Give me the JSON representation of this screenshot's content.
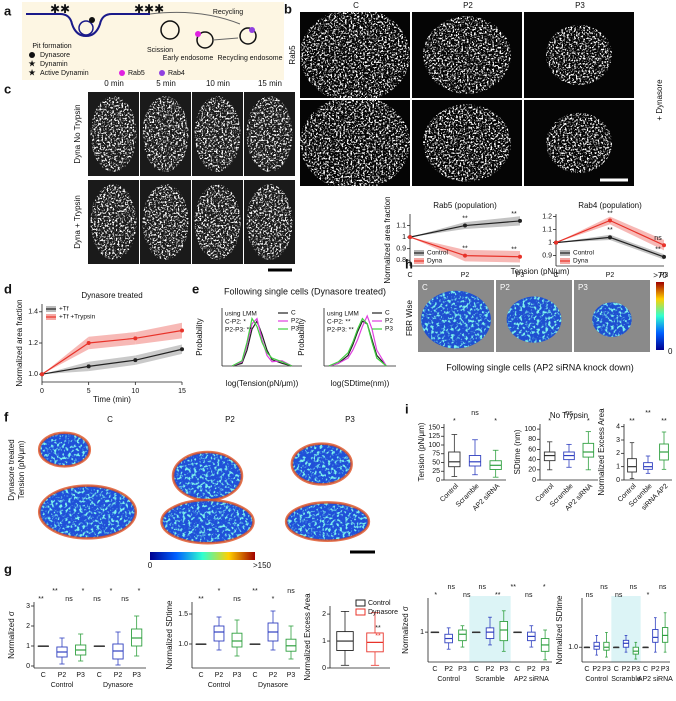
{
  "figure": {
    "panel_letters": [
      "a",
      "b",
      "c",
      "d",
      "e",
      "f",
      "g",
      "h",
      "i"
    ],
    "a": {
      "steps": [
        "Pit formation",
        "Scission",
        "Recycling",
        "Early endosome",
        "Recycling endosome"
      ],
      "legend": [
        "Dynasore",
        "Dynamin",
        "Active Dynamin",
        "Rab5",
        "Rab4"
      ]
    },
    "b": {
      "columns": [
        "C",
        "P2",
        "P3"
      ],
      "rows": [
        "Rab5",
        "Rab4"
      ],
      "side_label": "+ Dynasore"
    },
    "c": {
      "columns": [
        "0 min",
        "5 min",
        "10 min",
        "15 min"
      ],
      "rows": [
        "Dyna No Trypsin",
        "Dyna + Trypsin"
      ]
    },
    "e": {
      "title": "Following single cells (Dynasore treated)"
    },
    "f": {
      "side_label": [
        "Dynasore treated",
        "Tension (pN/μm)"
      ],
      "columns": [
        "C",
        "P2",
        "P3"
      ],
      "colorbar": [
        "0",
        ">150"
      ]
    },
    "h": {
      "title": "Tension (pN/μm)",
      "side_label": "FBR Wise",
      "columns": [
        "C",
        "P2",
        "P3"
      ],
      "colorbar": [
        ">70",
        "0"
      ],
      "caption": "Following single cells (AP2 siRNA knock down)"
    }
  },
  "chart_data": [
    {
      "type": "line",
      "title": "Rab5 (population)",
      "ylabel": "Normalized area fraction",
      "categories": [
        "C",
        "P2",
        "P3"
      ],
      "series": [
        {
          "name": "Control",
          "color": "#222222",
          "band_color": "#b4b4b4",
          "values": [
            1,
            1.1,
            1.14
          ],
          "error": [
            0,
            0.03,
            0.04
          ]
        },
        {
          "name": "Dyna",
          "color": "#e8332a",
          "band_color": "#f5a8a4",
          "values": [
            1,
            0.84,
            0.83
          ],
          "error": [
            0,
            0.05,
            0.05
          ]
        }
      ],
      "ylim": [
        0.75,
        1.2
      ],
      "yticks": [
        0.8,
        0.9,
        1,
        1.1
      ],
      "annotations": [
        "**",
        "**",
        "**",
        "**"
      ],
      "legend": "lower left",
      "markers": true
    },
    {
      "type": "line",
      "title": "Rab4 (population)",
      "categories": [
        "C",
        "P2",
        "P3"
      ],
      "series": [
        {
          "name": "Control",
          "color": "#222222",
          "band_color": "#b4b4b4",
          "values": [
            1,
            1.04,
            0.89
          ],
          "error": [
            0,
            0.02,
            0.02
          ]
        },
        {
          "name": "Dyna",
          "color": "#e8332a",
          "band_color": "#f5a8a4",
          "values": [
            1,
            1.17,
            0.98
          ],
          "error": [
            0,
            0.03,
            0.04
          ]
        }
      ],
      "ylim": [
        0.82,
        1.22
      ],
      "yticks": [
        0.9,
        1,
        1.1,
        1.2
      ],
      "annotations": [
        "**",
        "**",
        "**",
        "ns"
      ],
      "legend": "lower left",
      "markers": true
    },
    {
      "type": "line",
      "title": "Dynasore treated",
      "xlabel": "Time (min)",
      "ylabel": "Normalized area fraction",
      "x": [
        0,
        5,
        10,
        15
      ],
      "series": [
        {
          "name": "+Tf",
          "color": "#222222",
          "band_color": "#bcbcbc",
          "values": [
            1,
            1.05,
            1.09,
            1.16
          ],
          "error": [
            0,
            0.03,
            0.03,
            0.03
          ]
        },
        {
          "name": "+Tf +Trypsin",
          "color": "#e8332a",
          "band_color": "#f5a8a4",
          "values": [
            1,
            1.2,
            1.23,
            1.28
          ],
          "error": [
            0,
            0.04,
            0.04,
            0.05
          ]
        }
      ],
      "xlim": [
        0,
        15
      ],
      "xticks": [
        0,
        5,
        10,
        15
      ],
      "ylim": [
        0.95,
        1.45
      ],
      "yticks": [
        {
          "value": 1,
          "label": "1.0"
        },
        1.2,
        1.4
      ],
      "legend": "upper left",
      "markers": true
    },
    {
      "type": "line",
      "xlabel": "log(Tension(pN/μm))",
      "ylabel": "Probability",
      "x": [
        0.5,
        1,
        1.25,
        1.5,
        1.75,
        2,
        2.25,
        2.5,
        3,
        3.5
      ],
      "series": [
        {
          "name": "C",
          "color": "#222222",
          "values": [
            0,
            0.05,
            0.3,
            0.7,
            0.85,
            0.6,
            0.3,
            0.12,
            0.05,
            0
          ]
        },
        {
          "name": "P2",
          "color": "#e040e0",
          "values": [
            0,
            0.08,
            0.4,
            0.8,
            0.9,
            0.5,
            0.2,
            0.08,
            0.1,
            0
          ]
        },
        {
          "name": "P3",
          "color": "#40d040",
          "values": [
            0,
            0.1,
            0.45,
            0.9,
            0.75,
            0.45,
            0.25,
            0.15,
            0.08,
            0
          ]
        }
      ],
      "xlim": [
        0,
        4
      ],
      "ylim": [
        0,
        1.1
      ],
      "annotations": [
        "using LMM",
        "C-P2: *",
        "P2-P3: **"
      ],
      "legend": "upper right"
    },
    {
      "type": "line",
      "xlabel": "log(SDtime(nm))",
      "ylabel": "Probability",
      "x": [
        0,
        0.2,
        0.4,
        0.5,
        0.6,
        0.7,
        0.8,
        0.9,
        1,
        1.2
      ],
      "series": [
        {
          "name": "C",
          "color": "#222222",
          "values": [
            0,
            0.05,
            0.2,
            0.4,
            0.65,
            0.85,
            0.8,
            0.5,
            0.2,
            0
          ]
        },
        {
          "name": "P2",
          "color": "#e040e0",
          "values": [
            0,
            0.05,
            0.15,
            0.3,
            0.5,
            0.75,
            0.95,
            0.7,
            0.3,
            0
          ]
        },
        {
          "name": "P3",
          "color": "#40d040",
          "values": [
            0,
            0.08,
            0.25,
            0.45,
            0.7,
            0.9,
            0.8,
            0.45,
            0.15,
            0
          ]
        }
      ],
      "xlim": [
        -0.1,
        1.4
      ],
      "ylim": [
        0,
        1.1
      ],
      "annotations": [
        "using LMM",
        "C-P2: **",
        "P2-P3: **"
      ],
      "legend": "upper right"
    },
    {
      "type": "box",
      "ylabel": "Normalized σ",
      "categories": [
        "C",
        "P2",
        "P3",
        "C",
        "P2",
        "P3"
      ],
      "groups": [
        "Control",
        "Dynasore"
      ],
      "colors": [
        "#333333",
        "#3040c0",
        "#30a040",
        "#333333",
        "#3040c0",
        "#30a040"
      ],
      "q1": [
        1,
        0.45,
        0.55,
        1,
        0.35,
        1.0
      ],
      "median": [
        1,
        0.7,
        0.8,
        1,
        0.75,
        1.4
      ],
      "q3": [
        1,
        0.95,
        1.05,
        1,
        1.1,
        1.85
      ],
      "whisker_low": [
        1,
        0.1,
        0.25,
        1,
        0.05,
        0.5
      ],
      "whisker_high": [
        1,
        1.4,
        1.6,
        1,
        1.7,
        2.5
      ],
      "ylim": [
        -0.1,
        3.2
      ],
      "yticks": [
        0,
        1,
        2,
        3
      ],
      "annotations": [
        "**",
        "**",
        "ns",
        "*",
        "ns",
        "*",
        "ns",
        "*"
      ]
    },
    {
      "type": "box",
      "ylabel": "Normalized SDtime",
      "categories": [
        "C",
        "P2",
        "P3",
        "C",
        "P2",
        "P3"
      ],
      "groups": [
        "Control",
        "Dynasore"
      ],
      "colors": [
        "#333333",
        "#3040c0",
        "#30a040",
        "#333333",
        "#3040c0",
        "#30a040"
      ],
      "q1": [
        1,
        1.05,
        0.95,
        1,
        1.05,
        0.88
      ],
      "median": [
        1,
        1.2,
        1.05,
        1,
        1.2,
        0.97
      ],
      "q3": [
        1,
        1.3,
        1.18,
        1,
        1.35,
        1.08
      ],
      "whisker_low": [
        1,
        0.9,
        0.8,
        1,
        0.9,
        0.75
      ],
      "whisker_high": [
        1,
        1.45,
        1.4,
        1,
        1.55,
        1.3
      ],
      "ylim": [
        0.6,
        1.7
      ],
      "yticks": [
        {
          "value": 1,
          "label": "1.0"
        },
        1.5
      ],
      "annotations": [
        "**",
        "*",
        "ns",
        "**",
        "*",
        "ns"
      ]
    },
    {
      "type": "box",
      "ylabel": "Normalized Excess Area",
      "categories": [
        null,
        null
      ],
      "legend_labels": [
        "Control",
        "Dynasore"
      ],
      "colors": [
        "#222222",
        "#e8332a"
      ],
      "q1": [
        0.65,
        0.6
      ],
      "median": [
        1,
        0.95
      ],
      "q3": [
        1.35,
        1.3
      ],
      "whisker_low": [
        0.1,
        0.1
      ],
      "whisker_high": [
        2.1,
        2.05
      ],
      "ylim": [
        0,
        2.3
      ],
      "yticks": [
        0,
        1,
        2
      ],
      "annotations": [
        "**",
        "**"
      ],
      "annotation_colors": [
        "#222222",
        "#e8332a"
      ]
    },
    {
      "type": "box",
      "ylabel": "Tension (pN/μm)",
      "categories": [
        "Control",
        "Scramble",
        "AP2 siRNA"
      ],
      "colors": [
        "#333333",
        "#3040c0",
        "#30a040"
      ],
      "q1": [
        38,
        40,
        30
      ],
      "median": [
        52,
        52,
        42
      ],
      "q3": [
        80,
        70,
        55
      ],
      "whisker_low": [
        10,
        15,
        8
      ],
      "whisker_high": [
        130,
        115,
        85
      ],
      "ylim": [
        0,
        160
      ],
      "yticks": [
        0,
        25,
        50,
        75,
        100,
        125,
        150
      ],
      "annotations": [
        "*",
        "ns",
        "*"
      ]
    },
    {
      "type": "box",
      "title": "No Trypsin",
      "ylabel": "SDtime (nm)",
      "categories": [
        "Control",
        "Scramble",
        "AP2 siRNA"
      ],
      "colors": [
        "#333333",
        "#3040c0",
        "#30a040"
      ],
      "q1": [
        38,
        40,
        45
      ],
      "median": [
        48,
        48,
        55
      ],
      "q3": [
        55,
        55,
        72
      ],
      "whisker_low": [
        20,
        25,
        20
      ],
      "whisker_high": [
        75,
        70,
        95
      ],
      "ylim": [
        0,
        110
      ],
      "yticks": [
        0,
        20,
        40,
        60,
        80,
        100
      ],
      "annotations": [
        "*",
        "ns",
        "*"
      ]
    },
    {
      "type": "box",
      "ylabel": "Normalized Excess Area",
      "categories": [
        "Control",
        "Scramble",
        "siRNA AP2"
      ],
      "colors": [
        "#333333",
        "#3040c0",
        "#30a040"
      ],
      "q1": [
        0.6,
        0.8,
        1.5
      ],
      "median": [
        1,
        1,
        2.1
      ],
      "q3": [
        1.6,
        1.3,
        2.7
      ],
      "whisker_low": [
        0.1,
        0.5,
        0.8
      ],
      "whisker_high": [
        2.8,
        1.8,
        3.6
      ],
      "ylim": [
        0,
        4.2
      ],
      "yticks": [
        0,
        1,
        2,
        3,
        4
      ],
      "annotations": [
        "**",
        "**",
        "**"
      ]
    },
    {
      "type": "box",
      "ylabel": "Normalized σ",
      "categories": [
        "C",
        "P2",
        "P3",
        "C",
        "P2",
        "P3",
        "C",
        "P2",
        "P3"
      ],
      "groups": [
        "Control",
        "Scramble",
        "AP2 siRNA"
      ],
      "highlight_group": 1,
      "colors": [
        "#333333",
        "#3040c0",
        "#30a040",
        "#333333",
        "#3040c0",
        "#30a040",
        "#333333",
        "#3040c0",
        "#30a040"
      ],
      "q1": [
        1,
        0.75,
        0.8,
        1,
        0.85,
        0.8,
        1,
        0.8,
        0.55
      ],
      "median": [
        1,
        0.85,
        0.95,
        1,
        1,
        1.05,
        1,
        0.9,
        0.7
      ],
      "q3": [
        1,
        0.95,
        1.05,
        1,
        1.1,
        1.25,
        1,
        1.0,
        0.85
      ],
      "whisker_low": [
        1,
        0.6,
        0.65,
        1,
        0.7,
        0.55,
        1,
        0.65,
        0.35
      ],
      "whisker_high": [
        1,
        1.1,
        1.15,
        1,
        1.35,
        1.5,
        1,
        1.15,
        1.05
      ],
      "ylim": [
        0.3,
        1.8
      ],
      "yticks": [
        1
      ],
      "annotations": [
        "*",
        "ns",
        "ns",
        "ns",
        "**",
        "**",
        "ns",
        "*"
      ]
    },
    {
      "type": "box",
      "ylabel": "Normalized SDtime",
      "categories": [
        "C",
        "P2",
        "P3",
        "C",
        "P2",
        "P3",
        "C",
        "P2",
        "P3"
      ],
      "groups": [
        "Control",
        "Scramble",
        "AP2 siRNA"
      ],
      "highlight_group": 1,
      "colors": [
        "#333333",
        "#3040c0",
        "#30a040",
        "#333333",
        "#3040c0",
        "#30a040",
        "#333333",
        "#3040c0",
        "#30a040"
      ],
      "q1": [
        1,
        0.98,
        0.97,
        1,
        1.0,
        0.93,
        1,
        1.05,
        1.05
      ],
      "median": [
        1,
        1.01,
        1.0,
        1,
        1.04,
        0.96,
        1,
        1.1,
        1.12
      ],
      "q3": [
        1,
        1.05,
        1.05,
        1,
        1.07,
        1.0,
        1,
        1.18,
        1.2
      ],
      "whisker_low": [
        1,
        0.92,
        0.9,
        1,
        0.95,
        0.88,
        1,
        0.95,
        0.95
      ],
      "whisker_high": [
        1,
        1.12,
        1.15,
        1,
        1.12,
        1.05,
        1,
        1.3,
        1.35
      ],
      "ylim": [
        0.85,
        1.5
      ],
      "yticks": [
        {
          "value": 1,
          "label": "1.0"
        }
      ],
      "annotations": [
        "ns",
        "ns",
        "ns",
        "ns",
        "*",
        "ns"
      ]
    }
  ]
}
